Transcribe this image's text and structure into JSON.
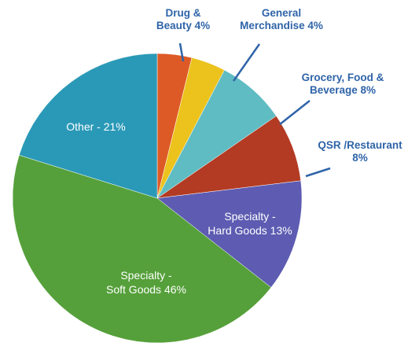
{
  "chart_data": {
    "type": "pie",
    "slices": [
      {
        "label_lines": [
          "Drug &",
          "Beauty 4%"
        ],
        "value": 4,
        "color": "#dd5a26",
        "label_style": "outside"
      },
      {
        "label_lines": [
          "General",
          "Merchandise 4%"
        ],
        "value": 4,
        "color": "#ecc21d",
        "label_style": "outside"
      },
      {
        "label_lines": [
          "Grocery, Food &",
          "Beverage 8%"
        ],
        "value": 8,
        "color": "#5fbcc2",
        "label_style": "outside"
      },
      {
        "label_lines": [
          "QSR /Restaurant",
          "8%"
        ],
        "value": 8,
        "color": "#b33b23",
        "label_style": "outside"
      },
      {
        "label_lines": [
          "Specialty -",
          "Hard Goods 13%"
        ],
        "value": 13,
        "color": "#5d5cb2",
        "label_style": "inside"
      },
      {
        "label_lines": [
          "Specialty -",
          "Soft Goods 46%"
        ],
        "value": 46,
        "color": "#55a03a",
        "label_style": "inside"
      },
      {
        "label_lines": [
          "Other - 21%"
        ],
        "value": 21,
        "color": "#2a99b7",
        "label_style": "inside"
      }
    ],
    "start_angle_deg": 0,
    "direction": "clockwise"
  }
}
